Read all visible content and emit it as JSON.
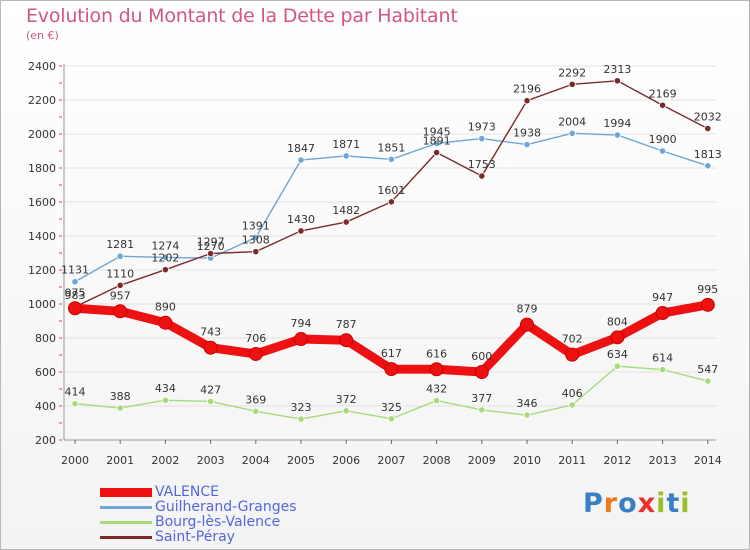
{
  "header": {
    "title": "Evolution du Montant de la Dette par Habitant",
    "unit": "(en €)"
  },
  "logo": {
    "text": "Proxiti",
    "colors": [
      "#3a7fc2",
      "#ef7a1a",
      "#3a7fc2",
      "#e8312c",
      "#9bbf2b",
      "#3a7fc2",
      "#9bbf2b"
    ]
  },
  "chart_data": {
    "type": "line",
    "title": "Evolution du Montant de la Dette par Habitant",
    "subtitle": "(en €)",
    "xlabel": "",
    "ylabel": "",
    "x": [
      "2000",
      "2001",
      "2002",
      "2003",
      "2004",
      "2005",
      "2006",
      "2007",
      "2008",
      "2009",
      "2010",
      "2011",
      "2012",
      "2013",
      "2014"
    ],
    "y_ticks": [
      200,
      400,
      600,
      800,
      1000,
      1200,
      1400,
      1600,
      1800,
      2000,
      2200,
      2400
    ],
    "ylim": [
      200,
      2400
    ],
    "grid": "horizontal",
    "legend_position": "bottom-left",
    "series": [
      {
        "name": "VALENCE",
        "color": "#ee1111",
        "emphasis": true,
        "values": [
          975,
          957,
          890,
          743,
          706,
          794,
          787,
          617,
          616,
          600,
          879,
          702,
          804,
          947,
          995
        ]
      },
      {
        "name": "Guilherand-Granges",
        "color": "#6ea6d6",
        "emphasis": false,
        "values": [
          1131,
          1281,
          1274,
          1270,
          1391,
          1847,
          1871,
          1851,
          1945,
          1973,
          1938,
          2004,
          1994,
          1900,
          1813
        ]
      },
      {
        "name": "Bourg-lès-Valence",
        "color": "#a7db7a",
        "emphasis": false,
        "values": [
          414,
          388,
          434,
          427,
          369,
          323,
          372,
          325,
          432,
          377,
          346,
          406,
          634,
          614,
          547
        ]
      },
      {
        "name": "Saint-Péray",
        "color": "#7a2a2a",
        "emphasis": false,
        "values": [
          983,
          1110,
          1202,
          1297,
          1308,
          1430,
          1482,
          1601,
          1891,
          1753,
          2196,
          2292,
          2313,
          2169,
          2032
        ]
      }
    ]
  }
}
